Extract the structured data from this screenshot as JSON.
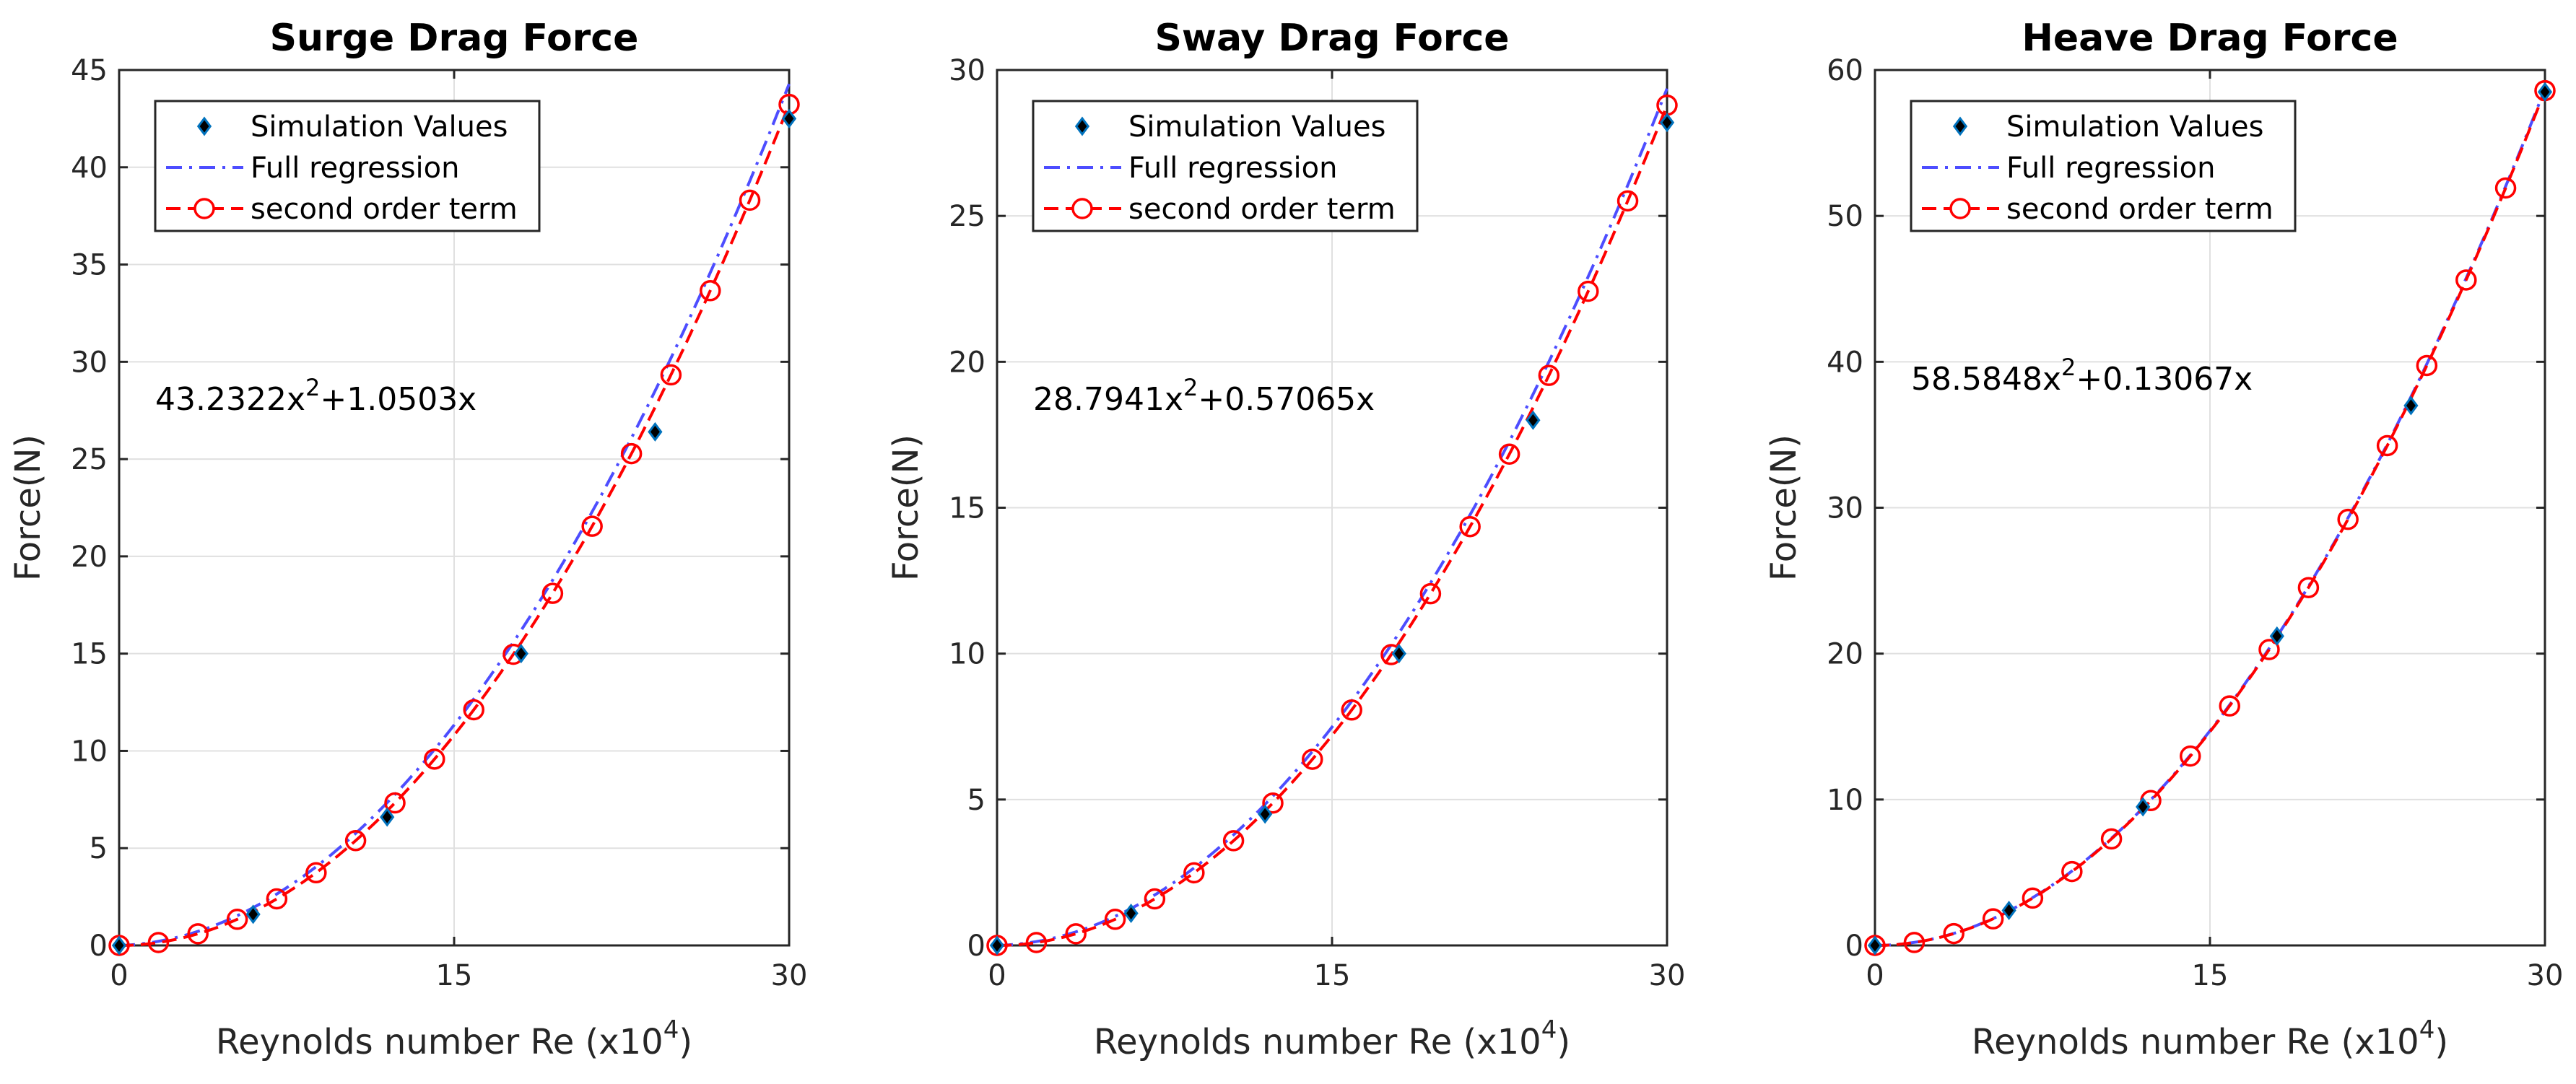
{
  "chart_data": [
    {
      "type": "scatter",
      "title": "Surge Drag Force",
      "xlabel": "Reynolds number Re (x10",
      "xlabel_exp": "4",
      "xlabel_close": ")",
      "ylabel": "Force(N)",
      "xlim": [
        0,
        30
      ],
      "ylim": [
        0,
        45
      ],
      "xticks": [
        0,
        15,
        30
      ],
      "yticks": [
        0,
        5,
        10,
        15,
        20,
        25,
        30,
        35,
        40,
        45
      ],
      "grid": true,
      "legend_position": "top-left",
      "legend": [
        "Simulation Values",
        "Full regression",
        "second order term"
      ],
      "equation": {
        "a": "43.2322x",
        "a_exp": "2",
        "b": "+1.0503x"
      },
      "coef_a": 43.2322,
      "coef_b": 1.0503,
      "simulation": [
        [
          0,
          0
        ],
        [
          6,
          1.6
        ],
        [
          12,
          6.6
        ],
        [
          18,
          15.0
        ],
        [
          24,
          26.4
        ],
        [
          30,
          42.5
        ]
      ],
      "markers_x": [
        0,
        1.76,
        3.53,
        5.29,
        7.06,
        8.82,
        10.59,
        12.35,
        14.12,
        15.88,
        17.65,
        19.41,
        21.18,
        22.94,
        24.71,
        26.47,
        28.24,
        30
      ]
    },
    {
      "type": "scatter",
      "title": "Sway Drag Force",
      "xlabel": "Reynolds number Re (x10",
      "xlabel_exp": "4",
      "xlabel_close": ")",
      "ylabel": "Force(N)",
      "xlim": [
        0,
        30
      ],
      "ylim": [
        0,
        30
      ],
      "xticks": [
        0,
        15,
        30
      ],
      "yticks": [
        0,
        5,
        10,
        15,
        20,
        25,
        30
      ],
      "grid": true,
      "legend_position": "top-left",
      "legend": [
        "Simulation Values",
        "Full regression",
        "second order term"
      ],
      "equation": {
        "a": "28.7941x",
        "a_exp": "2",
        "b": "+0.57065x"
      },
      "coef_a": 28.7941,
      "coef_b": 0.57065,
      "simulation": [
        [
          0,
          0
        ],
        [
          6,
          1.1
        ],
        [
          12,
          4.5
        ],
        [
          18,
          10.0
        ],
        [
          24,
          18.0
        ],
        [
          30,
          28.2
        ]
      ],
      "markers_x": [
        0,
        1.76,
        3.53,
        5.29,
        7.06,
        8.82,
        10.59,
        12.35,
        14.12,
        15.88,
        17.65,
        19.41,
        21.18,
        22.94,
        24.71,
        26.47,
        28.24,
        30
      ]
    },
    {
      "type": "scatter",
      "title": "Heave Drag Force",
      "xlabel": "Reynolds number Re (x10",
      "xlabel_exp": "4",
      "xlabel_close": ")",
      "ylabel": "Force(N)",
      "xlim": [
        0,
        30
      ],
      "ylim": [
        0,
        60
      ],
      "xticks": [
        0,
        15,
        30
      ],
      "yticks": [
        0,
        10,
        20,
        30,
        40,
        50,
        60
      ],
      "grid": true,
      "legend_position": "top-left",
      "legend": [
        "Simulation Values",
        "Full regression",
        "second order term"
      ],
      "equation": {
        "a": "58.5848x",
        "a_exp": "2",
        "b": "+0.13067x"
      },
      "coef_a": 58.5848,
      "coef_b": 0.13067,
      "simulation": [
        [
          0,
          0
        ],
        [
          6,
          2.4
        ],
        [
          12,
          9.5
        ],
        [
          18,
          21.2
        ],
        [
          24,
          37.0
        ],
        [
          30,
          58.5
        ]
      ],
      "markers_x": [
        0,
        1.76,
        3.53,
        5.29,
        7.06,
        8.82,
        10.59,
        12.35,
        14.12,
        15.88,
        17.65,
        19.41,
        21.18,
        22.94,
        24.71,
        26.47,
        28.24,
        30
      ]
    }
  ],
  "colors": {
    "simulation_fill": "#000000",
    "simulation_edge": "#0072BD",
    "full_regression": "#4D4DFF",
    "second_order": "#FF0000",
    "grid": "#E0E0E0",
    "axis": "#262626"
  }
}
